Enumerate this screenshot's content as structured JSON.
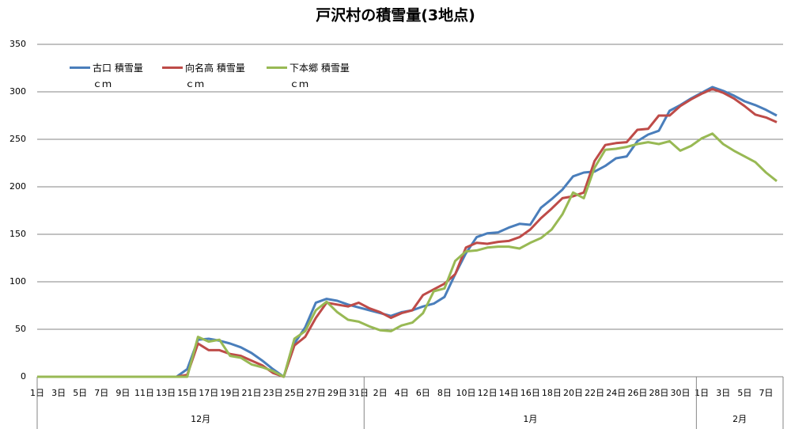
{
  "chart_data": {
    "type": "line",
    "title": "戸沢村の積雪量(3地点)",
    "categories": [
      "1日",
      null,
      "3日",
      null,
      "5日",
      null,
      "7日",
      null,
      "9日",
      null,
      "11日",
      null,
      "13日",
      null,
      "15日",
      null,
      "17日",
      null,
      "19日",
      null,
      "21日",
      null,
      "23日",
      null,
      "25日",
      null,
      "27日",
      null,
      "29日",
      null,
      "31日",
      null,
      "2日",
      null,
      "4日",
      null,
      "6日",
      null,
      "8日",
      null,
      "10日",
      null,
      "12日",
      null,
      "14日",
      null,
      "16日",
      null,
      "18日",
      null,
      "20日",
      null,
      "22日",
      null,
      "24日",
      null,
      "26日",
      null,
      "28日",
      null,
      "30日",
      null,
      "1日",
      null,
      "3日",
      null,
      "5日",
      null,
      "7日",
      null
    ],
    "months": [
      "12月",
      "1月",
      "2月"
    ],
    "series": [
      {
        "name": "古口 積雪量\nｃｍ",
        "color": "#4a7ebb",
        "values": [
          0,
          0,
          0,
          0,
          0,
          0,
          0,
          0,
          0,
          0,
          0,
          0,
          0,
          0,
          8,
          39,
          40,
          38,
          35,
          31,
          25,
          17,
          8,
          0,
          35,
          52,
          78,
          82,
          80,
          76,
          73,
          70,
          67,
          64,
          68,
          70,
          74,
          77,
          84,
          108,
          130,
          147,
          151,
          152,
          157,
          161,
          160,
          178,
          187,
          197,
          211,
          215,
          216,
          222,
          230,
          232,
          248,
          255,
          259,
          280,
          286,
          293,
          299,
          305,
          301,
          296,
          290,
          286,
          281,
          275
        ]
      },
      {
        "name": "向名高 積雪量\nｃｍ",
        "color": "#be4b48",
        "values": [
          0,
          0,
          0,
          0,
          0,
          0,
          0,
          0,
          0,
          0,
          0,
          0,
          0,
          0,
          2,
          35,
          28,
          28,
          24,
          22,
          17,
          12,
          4,
          0,
          33,
          42,
          62,
          78,
          76,
          74,
          78,
          72,
          68,
          62,
          67,
          70,
          86,
          92,
          98,
          108,
          136,
          141,
          140,
          142,
          143,
          147,
          155,
          167,
          177,
          188,
          190,
          194,
          227,
          244,
          246,
          247,
          260,
          261,
          275,
          275,
          285,
          292,
          298,
          303,
          299,
          293,
          285,
          276,
          273,
          268
        ]
      },
      {
        "name": "下本郷 積雪量\nｃｍ",
        "color": "#98b954",
        "values": [
          0,
          0,
          0,
          0,
          0,
          0,
          0,
          0,
          0,
          0,
          0,
          0,
          0,
          0,
          0,
          42,
          37,
          39,
          22,
          20,
          13,
          10,
          6,
          0,
          40,
          48,
          70,
          79,
          68,
          60,
          58,
          53,
          49,
          48,
          54,
          57,
          67,
          90,
          93,
          122,
          132,
          133,
          136,
          137,
          137,
          135,
          141,
          146,
          155,
          171,
          194,
          188,
          220,
          239,
          240,
          242,
          245,
          247,
          245,
          248,
          238,
          243,
          251,
          256,
          245,
          238,
          232,
          226,
          215,
          206
        ]
      }
    ],
    "ylim": [
      0,
      350
    ],
    "yticks": [
      0,
      50,
      100,
      150,
      200,
      250,
      300,
      350
    ],
    "grid": true
  }
}
